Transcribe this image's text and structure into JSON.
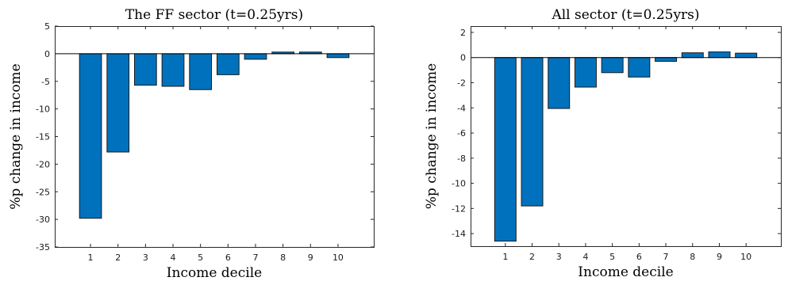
{
  "chart_data": [
    {
      "type": "bar",
      "title": "The FF sector (t=0.25yrs)",
      "xlabel": "Income decile",
      "ylabel": "%p change in income",
      "categories": [
        "1",
        "2",
        "3",
        "4",
        "5",
        "6",
        "7",
        "8",
        "9",
        "10"
      ],
      "values": [
        -29.8,
        -17.8,
        -5.7,
        -5.9,
        -6.5,
        -3.8,
        -1.0,
        0.3,
        0.3,
        -0.7
      ],
      "ylim": [
        -35,
        5
      ],
      "yticks": [
        5,
        0,
        -5,
        -10,
        -15,
        -20,
        -25,
        -30,
        -35
      ],
      "bar_color": "#0072BD",
      "grid": false
    },
    {
      "type": "bar",
      "title": "All sector (t=0.25yrs)",
      "xlabel": "Income decile",
      "ylabel": "%p change in income",
      "categories": [
        "1",
        "2",
        "3",
        "4",
        "5",
        "6",
        "7",
        "8",
        "9",
        "10"
      ],
      "values": [
        -14.6,
        -11.8,
        -4.05,
        -2.35,
        -1.2,
        -1.55,
        -0.3,
        0.38,
        0.45,
        0.35
      ],
      "ylim": [
        -15,
        2.5
      ],
      "yticks": [
        2,
        0,
        -2,
        -4,
        -6,
        -8,
        -10,
        -12,
        -14
      ],
      "bar_color": "#0072BD",
      "grid": false
    }
  ]
}
